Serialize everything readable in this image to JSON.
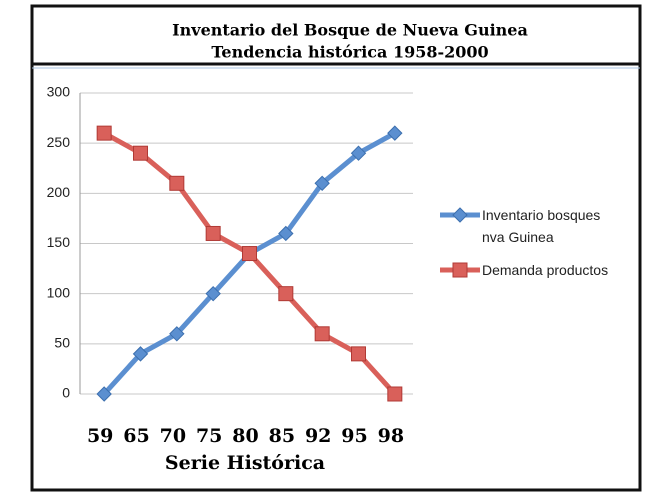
{
  "chart_data": {
    "type": "line",
    "title": "Inventario del Bosque de Nueva Guinea",
    "subtitle": "Tendencia histórica 1958-2000",
    "x_label": "Serie Histórica",
    "categories": [
      "59",
      "65",
      "70",
      "75",
      "80",
      "85",
      "92",
      "95",
      "98"
    ],
    "series": [
      {
        "name": "Inventario bosques nva Guinea",
        "color": "#5b8fd0",
        "marker": "diamond",
        "values": [
          0,
          40,
          60,
          100,
          140,
          160,
          210,
          240,
          260
        ]
      },
      {
        "name": "Demanda productos",
        "color": "#d9605a",
        "marker": "square",
        "values": [
          260,
          240,
          210,
          160,
          140,
          100,
          60,
          40,
          0
        ]
      }
    ],
    "ylim": [
      0,
      300
    ],
    "yticks": [
      0,
      50,
      100,
      150,
      200,
      250,
      300
    ],
    "grid": true,
    "legend": "right"
  }
}
